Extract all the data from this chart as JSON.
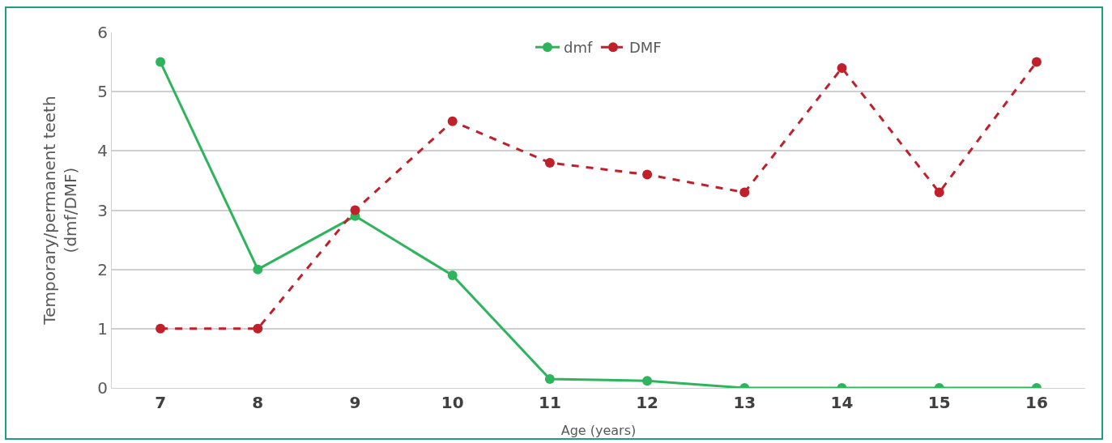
{
  "chart_data": {
    "type": "line",
    "xlabel": "Age (years)",
    "ylabel": "Temporary/permanent teeth (dmf/DMF)",
    "categories": [
      "7",
      "8",
      "9",
      "10",
      "11",
      "12",
      "13",
      "14",
      "15",
      "16"
    ],
    "series": [
      {
        "name": "dmf",
        "color": "#2db45d",
        "line_style": "solid",
        "values": [
          5.5,
          2,
          2.9,
          1.9,
          0.15,
          0.12,
          0,
          0,
          0,
          0
        ]
      },
      {
        "name": "DMF",
        "color": "#c0202a",
        "line_style": "dashed",
        "values": [
          1,
          1,
          3,
          4.5,
          3.8,
          3.6,
          3.3,
          5.4,
          3.3,
          5.5
        ]
      }
    ],
    "ylim": [
      0,
      6
    ],
    "yticks": [
      0,
      1,
      2,
      3,
      4,
      5,
      6
    ],
    "grid": "y",
    "legend": "top",
    "marker": "circle"
  }
}
